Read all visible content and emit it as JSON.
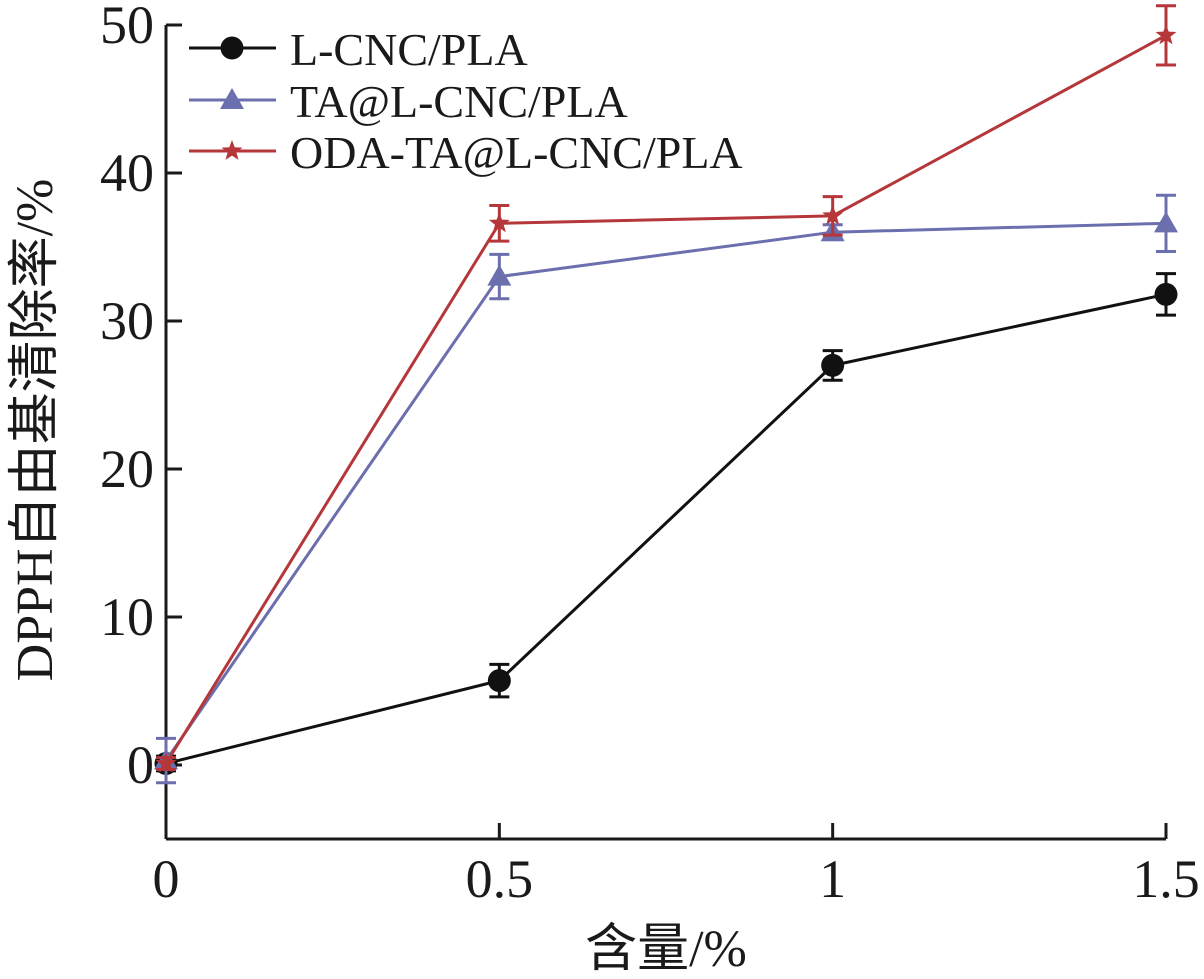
{
  "chart_data": {
    "type": "line",
    "x": [
      0,
      0.5,
      1,
      1.5
    ],
    "x_tick_labels": [
      "0",
      "0.5",
      "1",
      "1.5"
    ],
    "xlabel": "含量/%",
    "ylabel": "DPPH自由基清除率/%",
    "xlim": [
      0,
      1.5
    ],
    "ylim": [
      -5,
      50
    ],
    "y_ticks": [
      0,
      10,
      20,
      30,
      40,
      50
    ],
    "y_tick_labels": [
      "0",
      "10",
      "20",
      "30",
      "40",
      "50"
    ],
    "grid": false,
    "legend_position": "top-left",
    "series": [
      {
        "name": "L-CNC/PLA",
        "marker": "circle",
        "color": "#111111",
        "values": [
          0.1,
          5.7,
          27.0,
          31.8
        ],
        "errors": [
          0.5,
          1.1,
          1.0,
          1.4
        ]
      },
      {
        "name": "TA@L-CNC/PLA",
        "marker": "triangle",
        "color": "#6b6fae",
        "values": [
          0.3,
          33.0,
          36.0,
          36.6
        ],
        "errors": [
          1.5,
          1.5,
          0.5,
          1.9
        ]
      },
      {
        "name": "ODA-TA@L-CNC/PLA",
        "marker": "star",
        "color": "#b5373a",
        "values": [
          0.1,
          36.6,
          37.1,
          49.3
        ],
        "errors": [
          0.4,
          1.2,
          1.3,
          2.0
        ]
      }
    ]
  }
}
